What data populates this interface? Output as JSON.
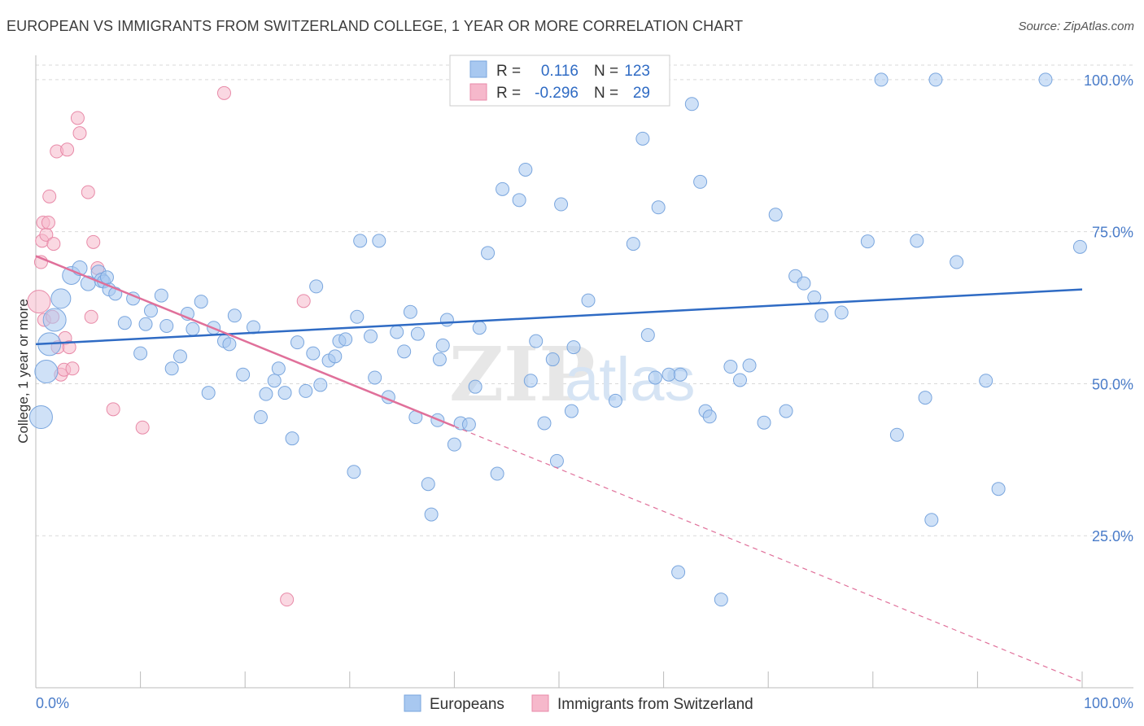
{
  "title": "EUROPEAN VS IMMIGRANTS FROM SWITZERLAND COLLEGE, 1 YEAR OR MORE CORRELATION CHART",
  "source": "Source: ZipAtlas.com",
  "watermark": {
    "zip": "ZIP",
    "atlas": "atlas"
  },
  "colors": {
    "blue": "#a8c8f0",
    "blue_stroke": "#7aa6de",
    "blue_line": "#2f6bc4",
    "pink": "#f6b8cb",
    "pink_stroke": "#e88aa8",
    "pink_line": "#e0709a",
    "tick_label": "#4a7cc9",
    "grid": "#d9d9d9"
  },
  "stats": {
    "blue": {
      "r_label": "R =",
      "r_value": "0.116",
      "n_label": "N =",
      "n_value": "123"
    },
    "pink": {
      "r_label": "R =",
      "r_value": "-0.296",
      "n_label": "N =",
      "n_value": "29"
    }
  },
  "chart_data": {
    "type": "scatter",
    "title": "EUROPEAN VS IMMIGRANTS FROM SWITZERLAND COLLEGE, 1 YEAR OR MORE CORRELATION CHART",
    "xlabel": "",
    "ylabel": "College, 1 year or more",
    "xlim": [
      0,
      100
    ],
    "ylim": [
      0,
      104
    ],
    "x_tick_labels": {
      "left": "0.0%",
      "right": "100.0%"
    },
    "y_ticks": [
      {
        "value": 25,
        "label": "25.0%"
      },
      {
        "value": 50,
        "label": "50.0%"
      },
      {
        "value": 75,
        "label": "75.0%"
      },
      {
        "value": 100,
        "label": "100.0%"
      }
    ],
    "grid": true,
    "legend_position": "bottom-center",
    "series": [
      {
        "name": "Europeans",
        "color": "#a8c8f0",
        "trend": {
          "x0": 0,
          "y0": 56.5,
          "x1": 100,
          "y1": 65.5
        },
        "points": [
          [
            0.5,
            44.5,
            14
          ],
          [
            1.0,
            52.0,
            14
          ],
          [
            1.3,
            56.5,
            14
          ],
          [
            1.8,
            60.5,
            14
          ],
          [
            2.4,
            64.0,
            12
          ],
          [
            3.4,
            67.8,
            11
          ],
          [
            4.2,
            69.0,
            9
          ],
          [
            5.0,
            66.5,
            9
          ],
          [
            6.0,
            68.3,
            9
          ],
          [
            6.3,
            67.0,
            9
          ],
          [
            6.5,
            66.8,
            8
          ],
          [
            7.0,
            65.5,
            8
          ],
          [
            6.8,
            67.5,
            8
          ],
          [
            7.6,
            64.8,
            8
          ],
          [
            8.5,
            60.0,
            8
          ],
          [
            9.3,
            64.0,
            8
          ],
          [
            10.0,
            55.0,
            8
          ],
          [
            10.5,
            59.8,
            8
          ],
          [
            11.0,
            62.0,
            8
          ],
          [
            12.0,
            64.5,
            8
          ],
          [
            12.5,
            59.5,
            8
          ],
          [
            13.0,
            52.5,
            8
          ],
          [
            13.8,
            54.5,
            8
          ],
          [
            14.5,
            61.5,
            8
          ],
          [
            15.0,
            59.0,
            8
          ],
          [
            15.8,
            63.5,
            8
          ],
          [
            16.5,
            48.5,
            8
          ],
          [
            17.0,
            59.2,
            8
          ],
          [
            18.0,
            57.0,
            8
          ],
          [
            18.5,
            56.5,
            8
          ],
          [
            19.0,
            61.2,
            8
          ],
          [
            19.8,
            51.5,
            8
          ],
          [
            20.8,
            59.3,
            8
          ],
          [
            21.5,
            44.5,
            8
          ],
          [
            22.0,
            48.3,
            8
          ],
          [
            22.8,
            50.5,
            8
          ],
          [
            23.2,
            52.5,
            8
          ],
          [
            23.8,
            48.5,
            8
          ],
          [
            24.5,
            41.0,
            8
          ],
          [
            25.0,
            56.8,
            8
          ],
          [
            25.8,
            48.8,
            8
          ],
          [
            26.5,
            55.0,
            8
          ],
          [
            26.8,
            66.0,
            8
          ],
          [
            27.2,
            49.8,
            8
          ],
          [
            28.0,
            53.8,
            8
          ],
          [
            28.6,
            54.5,
            8
          ],
          [
            29.0,
            57.0,
            8
          ],
          [
            29.6,
            57.3,
            8
          ],
          [
            30.4,
            35.5,
            8
          ],
          [
            30.7,
            61.0,
            8
          ],
          [
            31.0,
            73.5,
            8
          ],
          [
            32.0,
            57.8,
            8
          ],
          [
            32.4,
            51.0,
            8
          ],
          [
            32.8,
            73.5,
            8
          ],
          [
            33.7,
            47.8,
            8
          ],
          [
            34.5,
            58.5,
            8
          ],
          [
            35.2,
            55.3,
            8
          ],
          [
            35.8,
            61.8,
            8
          ],
          [
            36.3,
            44.5,
            8
          ],
          [
            36.5,
            58.2,
            8
          ],
          [
            37.5,
            33.5,
            8
          ],
          [
            37.8,
            28.5,
            8
          ],
          [
            38.4,
            44.0,
            8
          ],
          [
            38.6,
            54.0,
            8
          ],
          [
            38.9,
            56.3,
            8
          ],
          [
            39.3,
            60.5,
            8
          ],
          [
            40.0,
            40.0,
            8
          ],
          [
            40.6,
            43.5,
            8
          ],
          [
            41.4,
            43.3,
            8
          ],
          [
            42.0,
            49.5,
            8
          ],
          [
            42.4,
            59.2,
            8
          ],
          [
            43.2,
            71.5,
            8
          ],
          [
            44.1,
            35.2,
            8
          ],
          [
            44.6,
            82.0,
            8
          ],
          [
            45.4,
            100.0,
            8
          ],
          [
            45.9,
            100.0,
            8
          ],
          [
            46.2,
            80.2,
            8
          ],
          [
            46.8,
            85.2,
            8
          ],
          [
            47.3,
            50.5,
            8
          ],
          [
            47.8,
            57.0,
            8
          ],
          [
            48.6,
            43.5,
            8
          ],
          [
            49.4,
            54.0,
            8
          ],
          [
            49.8,
            37.3,
            8
          ],
          [
            50.2,
            79.5,
            8
          ],
          [
            51.2,
            45.5,
            8
          ],
          [
            51.4,
            56.0,
            8
          ],
          [
            52.0,
            100.0,
            8
          ],
          [
            52.8,
            63.7,
            8
          ],
          [
            55.4,
            47.2,
            8
          ],
          [
            57.1,
            73.0,
            8
          ],
          [
            58.0,
            90.3,
            8
          ],
          [
            58.5,
            58.0,
            8
          ],
          [
            59.2,
            51.0,
            8
          ],
          [
            59.5,
            79.0,
            8
          ],
          [
            60.5,
            51.5,
            8
          ],
          [
            61.4,
            19.0,
            8
          ],
          [
            61.6,
            51.5,
            8
          ],
          [
            62.7,
            96.0,
            8
          ],
          [
            63.5,
            83.2,
            8
          ],
          [
            64.0,
            45.5,
            8
          ],
          [
            64.4,
            44.6,
            8
          ],
          [
            65.5,
            14.5,
            8
          ],
          [
            66.4,
            52.8,
            8
          ],
          [
            67.3,
            50.6,
            8
          ],
          [
            68.2,
            53.0,
            8
          ],
          [
            69.6,
            43.6,
            8
          ],
          [
            70.7,
            77.8,
            8
          ],
          [
            71.7,
            45.5,
            8
          ],
          [
            72.6,
            67.7,
            8
          ],
          [
            73.4,
            66.5,
            8
          ],
          [
            74.4,
            64.2,
            8
          ],
          [
            75.1,
            61.2,
            8
          ],
          [
            77.0,
            61.7,
            8
          ],
          [
            79.5,
            73.4,
            8
          ],
          [
            80.8,
            100.0,
            8
          ],
          [
            82.3,
            41.6,
            8
          ],
          [
            84.2,
            73.5,
            8
          ],
          [
            85.0,
            47.7,
            8
          ],
          [
            85.6,
            27.6,
            8
          ],
          [
            86.0,
            100.0,
            8
          ],
          [
            88.0,
            70.0,
            8
          ],
          [
            90.8,
            50.5,
            8
          ],
          [
            92.0,
            32.7,
            8
          ],
          [
            96.5,
            100.0,
            8
          ],
          [
            99.8,
            72.5,
            8
          ]
        ]
      },
      {
        "name": "Immigrants from Switzerland",
        "color": "#f6b8cb",
        "trend": {
          "x0": 0,
          "y0": 71.0,
          "x1": 40,
          "y1": 43.0,
          "dash_to_x": 100,
          "dash_to_y": 1.0
        },
        "points": [
          [
            0.3,
            63.5,
            14
          ],
          [
            0.5,
            70.0,
            8
          ],
          [
            0.6,
            73.5,
            8
          ],
          [
            0.7,
            76.5,
            8
          ],
          [
            0.8,
            60.5,
            8
          ],
          [
            1.0,
            74.5,
            8
          ],
          [
            1.2,
            76.5,
            8
          ],
          [
            1.3,
            80.8,
            8
          ],
          [
            1.6,
            61.0,
            8
          ],
          [
            1.7,
            73.0,
            8
          ],
          [
            2.0,
            88.2,
            8
          ],
          [
            2.1,
            56.0,
            8
          ],
          [
            2.4,
            51.5,
            8
          ],
          [
            2.7,
            52.3,
            8
          ],
          [
            2.8,
            57.5,
            8
          ],
          [
            3.0,
            88.5,
            8
          ],
          [
            3.2,
            56.0,
            8
          ],
          [
            3.5,
            52.5,
            8
          ],
          [
            4.0,
            93.7,
            8
          ],
          [
            4.2,
            91.2,
            8
          ],
          [
            5.0,
            81.5,
            8
          ],
          [
            5.3,
            61.0,
            8
          ],
          [
            5.5,
            73.3,
            8
          ],
          [
            5.9,
            69.0,
            8
          ],
          [
            7.4,
            45.8,
            8
          ],
          [
            10.2,
            42.8,
            8
          ],
          [
            18.0,
            97.8,
            8
          ],
          [
            25.6,
            63.6,
            8
          ],
          [
            24.0,
            14.5,
            8
          ]
        ]
      }
    ]
  },
  "legend": {
    "items": [
      {
        "label": "Europeans",
        "color": "#a8c8f0",
        "stroke": "#7aa6de"
      },
      {
        "label": "Immigrants from Switzerland",
        "color": "#f6b8cb",
        "stroke": "#e88aa8"
      }
    ]
  }
}
